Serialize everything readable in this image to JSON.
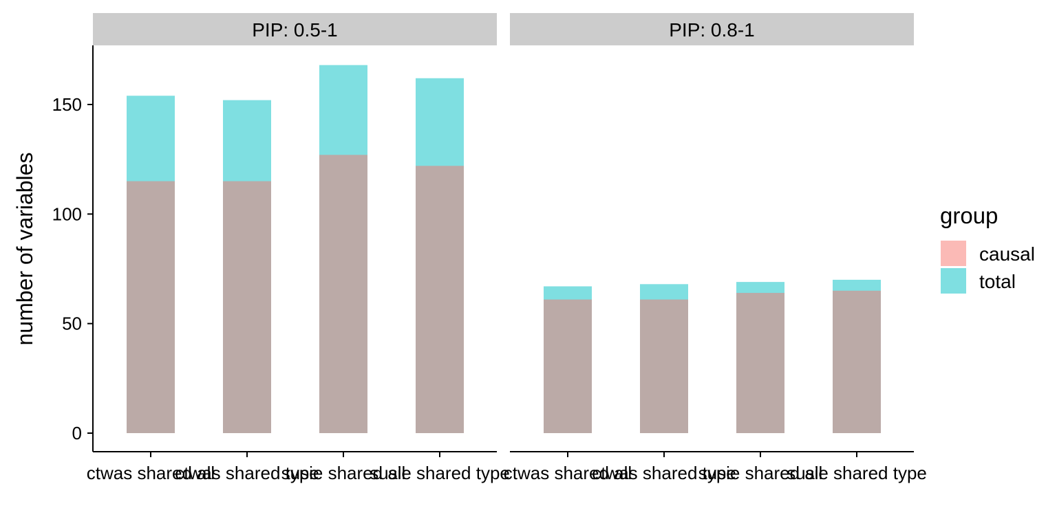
{
  "chart_data": {
    "type": "bar",
    "ylabel": "number of variables",
    "ylim": [
      0,
      175
    ],
    "yticks": [
      0,
      50,
      100,
      150
    ],
    "categories": [
      "ctwas shared all",
      "ctwas shared type",
      "susie shared all",
      "susie shared type"
    ],
    "facets": [
      {
        "label": "PIP: 0.5-1",
        "series": [
          {
            "name": "total",
            "values": [
              154,
              152,
              168,
              162
            ]
          },
          {
            "name": "causal",
            "values": [
              115,
              115,
              127,
              122
            ]
          }
        ]
      },
      {
        "label": "PIP: 0.8-1",
        "series": [
          {
            "name": "total",
            "values": [
              67,
              68,
              69,
              70
            ]
          },
          {
            "name": "causal",
            "values": [
              61,
              61,
              64,
              65
            ]
          }
        ]
      }
    ],
    "legend": {
      "title": "group",
      "placement": "right",
      "entries": [
        {
          "name": "causal",
          "color": "#F8766D"
        },
        {
          "name": "total",
          "color": "#00BFC4"
        }
      ]
    },
    "bar_alpha": 0.5,
    "grid": false
  }
}
